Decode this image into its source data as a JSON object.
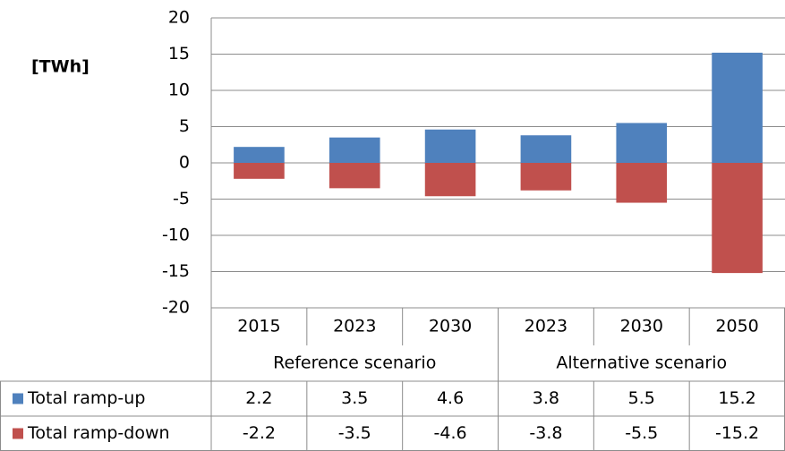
{
  "chart_data": {
    "type": "bar",
    "y_label": "[TWh]",
    "category_groups": [
      {
        "name": "Reference scenario",
        "categories": [
          "2015",
          "2023",
          "2030"
        ]
      },
      {
        "name": "Alternative scenario",
        "categories": [
          "2023",
          "2030",
          "2050"
        ]
      }
    ],
    "series": [
      {
        "name": "Total ramp-up",
        "color": "#4f81bd",
        "values": [
          2.2,
          3.5,
          4.6,
          3.8,
          5.5,
          15.2
        ]
      },
      {
        "name": "Total ramp-down",
        "color": "#c0504d",
        "values": [
          -2.2,
          -3.5,
          -4.6,
          -3.8,
          -5.5,
          -15.2
        ]
      }
    ],
    "ylim": [
      -20,
      20
    ],
    "yticks": [
      -20,
      -15,
      -10,
      -5,
      0,
      5,
      10,
      15,
      20
    ],
    "grid": true
  }
}
